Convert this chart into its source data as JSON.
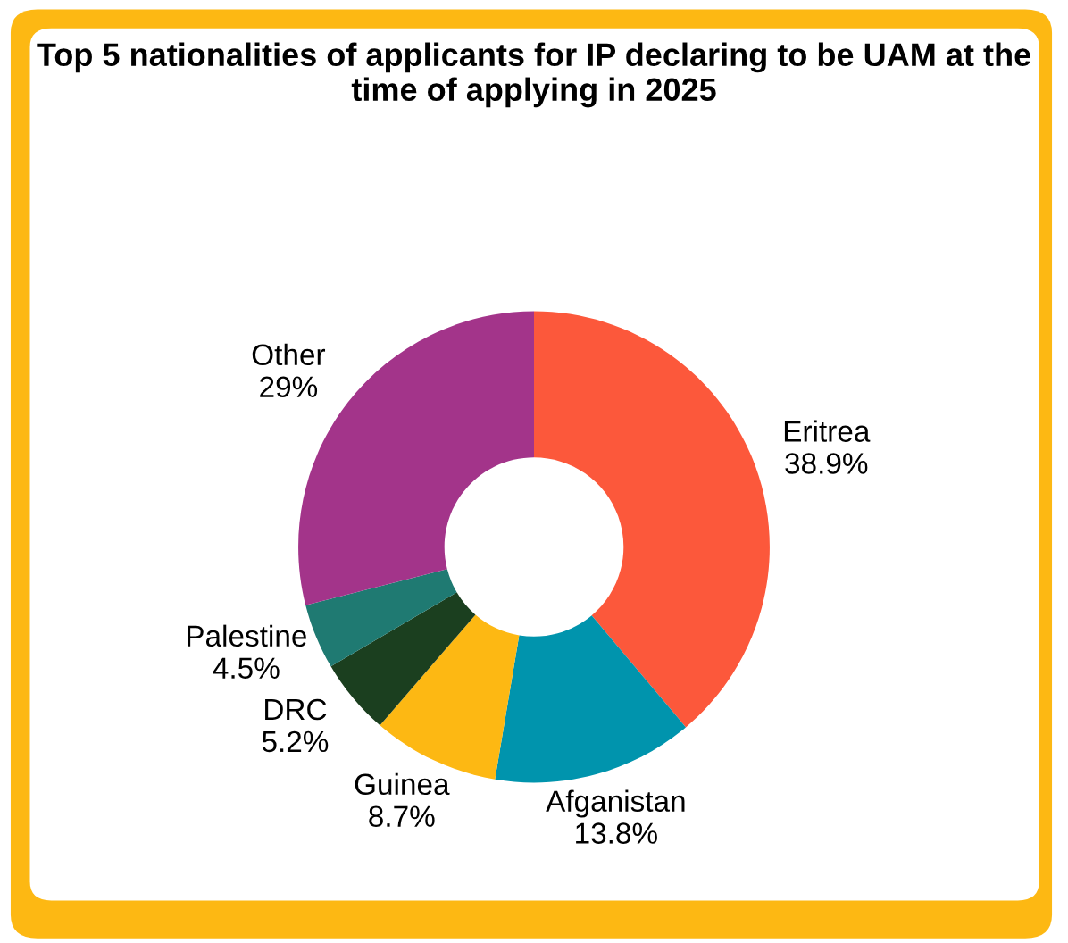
{
  "chart_data": {
    "type": "donut",
    "title": "Top 5 nationalities of applicants for IP declaring to be UAM at the time of applying in 2025",
    "categories": [
      "Eritrea",
      "Afganistan",
      "Guinea",
      "DRC",
      "Palestine",
      "Other"
    ],
    "values": [
      38.9,
      13.8,
      8.7,
      5.2,
      4.5,
      29
    ],
    "value_labels": [
      "38.9%",
      "13.8%",
      "8.7%",
      "5.2%",
      "4.5%",
      "29%"
    ],
    "colors": [
      "#fc583b",
      "#0094ad",
      "#fdb813",
      "#1b3f1f",
      "#1f7a72",
      "#a3348a"
    ],
    "legend": false
  }
}
